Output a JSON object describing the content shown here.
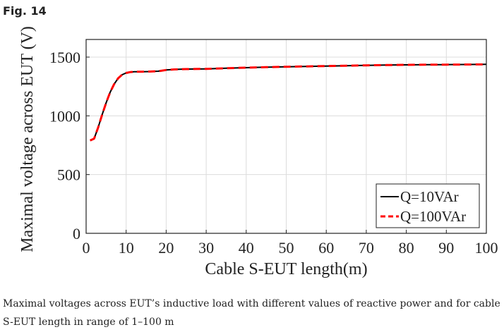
{
  "figure": {
    "label": "Fig. 14",
    "caption": "Maximal voltages across EUT’s inductive load with different values of reactive power and for cable S-EUT length in range of 1–100 m"
  },
  "chart_data": {
    "type": "line",
    "xlabel": "Cable S-EUT length(m)",
    "ylabel": "Maximal voltage across EUT (V)",
    "xlim": [
      0,
      100
    ],
    "ylim": [
      0,
      1650
    ],
    "xticks": [
      0,
      10,
      20,
      30,
      40,
      50,
      60,
      70,
      80,
      90,
      100
    ],
    "yticks": [
      0,
      500,
      1000,
      1500
    ],
    "grid": true,
    "legend_position": "bottom-right",
    "series": [
      {
        "name": "Q=10VAr",
        "color": "#000000",
        "style": "solid",
        "x": [
          1,
          2,
          3,
          4,
          5,
          6,
          7,
          8,
          9,
          10,
          11,
          12,
          14,
          16,
          18,
          20,
          22,
          25,
          30,
          35,
          40,
          45,
          50,
          55,
          60,
          65,
          70,
          75,
          80,
          85,
          90,
          95,
          100
        ],
        "y": [
          790,
          805,
          900,
          1010,
          1110,
          1200,
          1270,
          1320,
          1350,
          1365,
          1372,
          1375,
          1376,
          1377,
          1380,
          1390,
          1395,
          1398,
          1400,
          1405,
          1410,
          1414,
          1418,
          1421,
          1424,
          1427,
          1430,
          1432,
          1434,
          1435,
          1436,
          1437,
          1438
        ]
      },
      {
        "name": "Q=100VAr",
        "color": "#ff0000",
        "style": "dashed",
        "x": [
          1,
          2,
          3,
          4,
          5,
          6,
          7,
          8,
          9,
          10,
          11,
          12,
          14,
          16,
          18,
          20,
          22,
          25,
          30,
          35,
          40,
          45,
          50,
          55,
          60,
          65,
          70,
          75,
          80,
          85,
          90,
          95,
          100
        ],
        "y": [
          790,
          805,
          900,
          1010,
          1110,
          1200,
          1270,
          1320,
          1350,
          1365,
          1372,
          1375,
          1376,
          1377,
          1380,
          1390,
          1395,
          1398,
          1400,
          1405,
          1410,
          1414,
          1418,
          1421,
          1424,
          1427,
          1430,
          1432,
          1434,
          1435,
          1436,
          1437,
          1438
        ]
      }
    ]
  }
}
